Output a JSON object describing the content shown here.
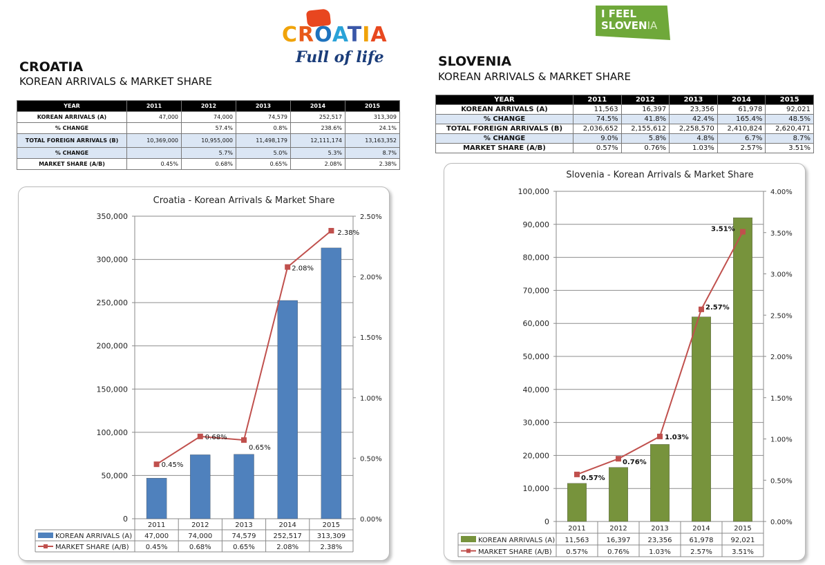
{
  "croatia": {
    "logo": {
      "word": [
        "C",
        "R",
        "O",
        "A",
        "T",
        "I",
        "A"
      ],
      "tagline": "Full of life"
    },
    "heading": "CROATIA",
    "subheading": "KOREAN ARRIVALS & MARKET SHARE",
    "table": {
      "headers": [
        "YEAR",
        "2011",
        "2012",
        "2013",
        "2014",
        "2015"
      ],
      "rows": [
        {
          "label": "KOREAN ARRIVALS (A)",
          "values": [
            "47,000",
            "74,000",
            "74,579",
            "252,517",
            "313,309"
          ]
        },
        {
          "label": "% CHANGE",
          "values": [
            "",
            "57.4%",
            "0.8%",
            "238.6%",
            "24.1%"
          ]
        },
        {
          "label": "TOTAL FOREIGN ARRIVALS (B)",
          "values": [
            "10,369,000",
            "10,955,000",
            "11,498,179",
            "12,111,174",
            "13,163,352"
          ]
        },
        {
          "label": "% CHANGE",
          "values": [
            "",
            "5.7%",
            "5.0%",
            "5.3%",
            "8.7%"
          ]
        },
        {
          "label": "MARKET SHARE (A/B)",
          "values": [
            "0.45%",
            "0.68%",
            "0.65%",
            "2.08%",
            "2.38%"
          ]
        }
      ]
    }
  },
  "slovenia": {
    "logo": {
      "line1": "I FEEL",
      "line2a": "SLOVEN",
      "line2b": "IA"
    },
    "heading": "SLOVENIA",
    "subheading": "KOREAN ARRIVALS & MARKET SHARE",
    "table": {
      "headers": [
        "YEAR",
        "2011",
        "2012",
        "2013",
        "2014",
        "2015"
      ],
      "rows": [
        {
          "label": "KOREAN ARRIVALS (A)",
          "values": [
            "11,563",
            "16,397",
            "23,356",
            "61,978",
            "92,021"
          ]
        },
        {
          "label": "% CHANGE",
          "values": [
            "74.5%",
            "41.8%",
            "42.4%",
            "165.4%",
            "48.5%"
          ]
        },
        {
          "label": "TOTAL FOREIGN ARRIVALS (B)",
          "values": [
            "2,036,652",
            "2,155,612",
            "2,258,570",
            "2,410,824",
            "2,620,471"
          ]
        },
        {
          "label": "% CHANGE",
          "values": [
            "9.0%",
            "5.8%",
            "4.8%",
            "6.7%",
            "8.7%"
          ]
        },
        {
          "label": "MARKET SHARE (A/B)",
          "values": [
            "0.57%",
            "0.76%",
            "1.03%",
            "2.57%",
            "3.51%"
          ]
        }
      ]
    }
  },
  "chart_data": [
    {
      "id": "croatia",
      "type": "bar+line",
      "title": "Croatia - Korean Arrivals & Market Share",
      "categories": [
        "2011",
        "2012",
        "2013",
        "2014",
        "2015"
      ],
      "series": [
        {
          "name": "KOREAN ARRIVALS (A)",
          "type": "bar",
          "axis": "left",
          "values": [
            47000,
            74000,
            74579,
            252517,
            313309
          ],
          "labels": [
            "47,000",
            "74,000",
            "74,579",
            "252,517",
            "313,309"
          ]
        },
        {
          "name": "MARKET SHARE (A/B)",
          "type": "line",
          "axis": "right",
          "values": [
            0.45,
            0.68,
            0.65,
            2.08,
            2.38
          ],
          "labels": [
            "0.45%",
            "0.68%",
            "0.65%",
            "2.08%",
            "2.38%"
          ]
        }
      ],
      "ylim_left": [
        0,
        350000
      ],
      "yticks_left": [
        "0",
        "50,000",
        "100,000",
        "150,000",
        "200,000",
        "250,000",
        "300,000",
        "350,000"
      ],
      "ylim_right": [
        0,
        2.5
      ],
      "yticks_right": [
        "0.00%",
        "0.50%",
        "1.00%",
        "1.50%",
        "2.00%",
        "2.50%"
      ],
      "grid": true,
      "legend": "data-table",
      "colors": {
        "bar": "#4f81bd",
        "line": "#c0504d"
      }
    },
    {
      "id": "slovenia",
      "type": "bar+line",
      "title": "Slovenia - Korean Arrivals & Market Share",
      "categories": [
        "2011",
        "2012",
        "2013",
        "2014",
        "2015"
      ],
      "series": [
        {
          "name": "KOREAN ARRIVALS (A)",
          "type": "bar",
          "axis": "left",
          "values": [
            11563,
            16397,
            23356,
            61978,
            92021
          ],
          "labels": [
            "11,563",
            "16,397",
            "23,356",
            "61,978",
            "92,021"
          ]
        },
        {
          "name": "MARKET SHARE (A/B)",
          "type": "line",
          "axis": "right",
          "values": [
            0.57,
            0.76,
            1.03,
            2.57,
            3.51
          ],
          "labels": [
            "0.57%",
            "0.76%",
            "1.03%",
            "2.57%",
            "3.51%"
          ]
        }
      ],
      "ylim_left": [
        0,
        100000
      ],
      "yticks_left": [
        "0",
        "10,000",
        "20,000",
        "30,000",
        "40,000",
        "50,000",
        "60,000",
        "70,000",
        "80,000",
        "90,000",
        "100,000"
      ],
      "ylim_right": [
        0,
        4.0
      ],
      "yticks_right": [
        "0.00%",
        "0.50%",
        "1.00%",
        "1.50%",
        "2.00%",
        "2.50%",
        "3.00%",
        "3.50%",
        "4.00%"
      ],
      "grid": true,
      "legend": "data-table",
      "colors": {
        "bar": "#77933c",
        "line": "#c0504d"
      }
    }
  ]
}
